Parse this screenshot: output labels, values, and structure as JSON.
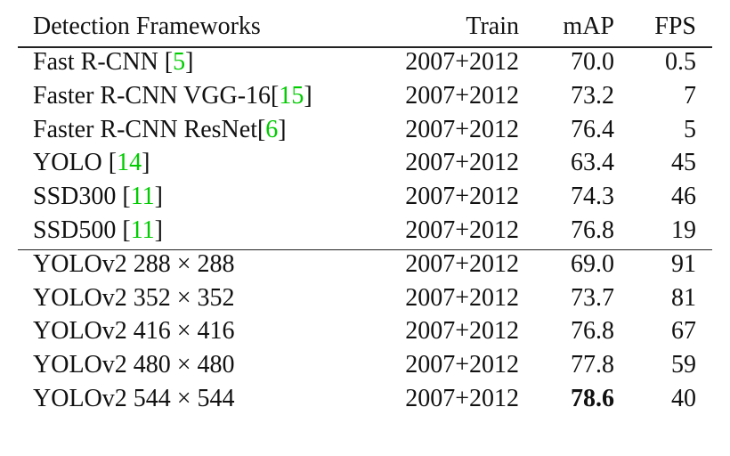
{
  "table": {
    "link_color": "#00cc00",
    "header": [
      "Detection Frameworks",
      "Train",
      "mAP",
      "FPS"
    ],
    "group_break_after": 5,
    "rows": [
      {
        "framework": [
          "Fast R-CNN [",
          {
            "cite": "5"
          },
          "]"
        ],
        "train": "2007+2012",
        "map": "70.0",
        "fps": "0.5"
      },
      {
        "framework": [
          "Faster R-CNN VGG-16[",
          {
            "cite": "15"
          },
          "]"
        ],
        "train": "2007+2012",
        "map": "73.2",
        "fps": "7"
      },
      {
        "framework": [
          "Faster R-CNN ResNet[",
          {
            "cite": "6"
          },
          "]"
        ],
        "train": "2007+2012",
        "map": "76.4",
        "fps": "5"
      },
      {
        "framework": [
          "YOLO [",
          {
            "cite": "14"
          },
          "]"
        ],
        "train": "2007+2012",
        "map": "63.4",
        "fps": "45"
      },
      {
        "framework": [
          "SSD300 [",
          {
            "cite": "11"
          },
          "]"
        ],
        "train": "2007+2012",
        "map": "74.3",
        "fps": "46"
      },
      {
        "framework": [
          "SSD500 [",
          {
            "cite": "11"
          },
          "]"
        ],
        "train": "2007+2012",
        "map": "76.8",
        "fps": "19"
      },
      {
        "framework": [
          "YOLOv2 288 × 288"
        ],
        "train": "2007+2012",
        "map": "69.0",
        "fps": "91"
      },
      {
        "framework": [
          "YOLOv2 352 × 352"
        ],
        "train": "2007+2012",
        "map": "73.7",
        "fps": "81"
      },
      {
        "framework": [
          "YOLOv2 416 × 416"
        ],
        "train": "2007+2012",
        "map": "76.8",
        "fps": "67"
      },
      {
        "framework": [
          "YOLOv2 480 × 480"
        ],
        "train": "2007+2012",
        "map": "77.8",
        "fps": "59"
      },
      {
        "framework": [
          "YOLOv2 544 × 544"
        ],
        "train": "2007+2012",
        "map": "78.6",
        "map_bold": true,
        "fps": "40"
      }
    ]
  }
}
